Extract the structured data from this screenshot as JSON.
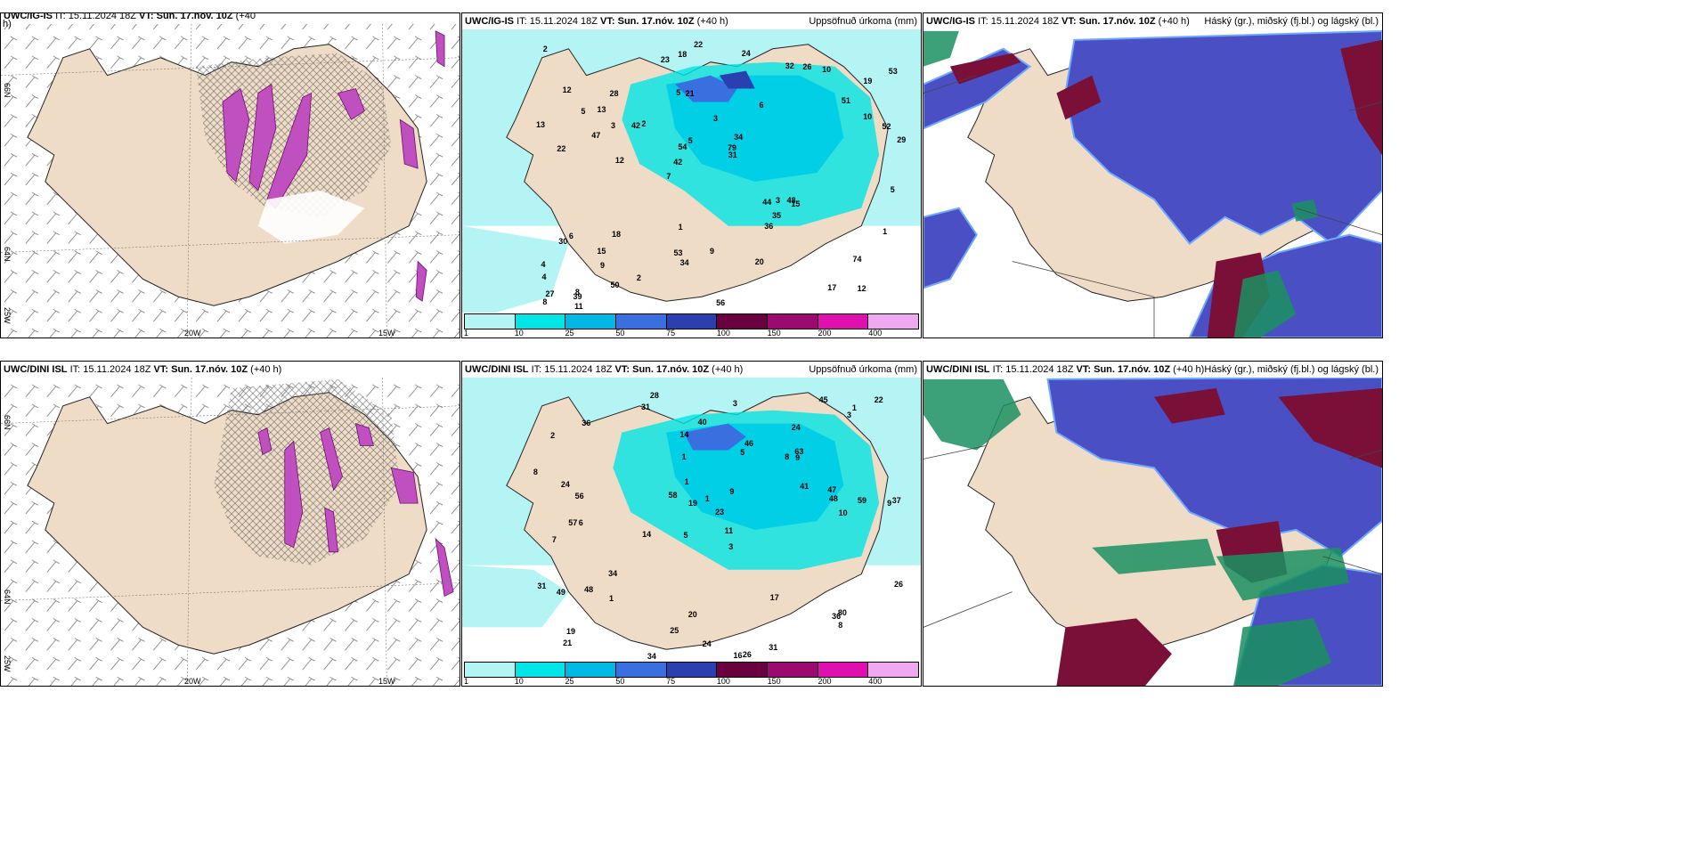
{
  "top": {
    "left": {
      "model": "UWC/IG-IS",
      "it": "IT: 15.11.2024 18Z",
      "vt": "VT: Sun. 17.nóv. 10Z",
      "lead": "(+40",
      "lead2": "h)",
      "axis": {
        "lat1": "66N",
        "lat2": "64N",
        "lat3": "25W",
        "lon1": "20W",
        "lon2": "15W"
      }
    },
    "middle": {
      "model": "UWC/IG-IS",
      "it": "IT: 15.11.2024 18Z",
      "vt": "VT: Sun. 17.nóv. 10Z",
      "lead": "(+40 h)",
      "field": "Uppsöfnuð úrkoma (mm)",
      "values": [
        "12",
        "22",
        "19",
        "7",
        "6",
        "8",
        "5",
        "3",
        "6",
        "2",
        "4",
        "9",
        "21",
        "34",
        "15",
        "12",
        "18",
        "29",
        "44",
        "10",
        "42",
        "53",
        "54",
        "28",
        "32",
        "18",
        "17",
        "74",
        "48",
        "56",
        "42",
        "47",
        "36",
        "50",
        "52",
        "79",
        "27",
        "34",
        "31",
        "30",
        "51",
        "53",
        "35",
        "20",
        "15",
        "11",
        "8",
        "9",
        "10",
        "22",
        "12",
        "13",
        "13",
        "26",
        "39",
        "24",
        "23",
        "5",
        "1",
        "1",
        "2",
        "3",
        "3",
        "4",
        "2",
        "5",
        "5"
      ]
    },
    "right": {
      "model": "UWC/IG-IS",
      "it": "IT: 15.11.2024 18Z",
      "vt": "VT: Sun. 17.nóv. 10Z",
      "lead": "(+40 h)",
      "field": "Háský (gr.), miðský (fj.bl.) og lágský (bl.)"
    }
  },
  "bottom": {
    "left": {
      "model": "UWC/DINI ISL",
      "it": "IT: 15.11.2024 18Z",
      "vt": "VT: Sun. 17.nóv. 10Z",
      "lead": "(+40 h)",
      "axis": {
        "lat1": "66N",
        "lat2": "64N",
        "lat3": "25W",
        "lon1": "20W",
        "lon2": "15W"
      }
    },
    "middle": {
      "model": "UWC/DINI ISL",
      "it": "IT: 15.11.2024 18Z",
      "vt": "VT: Sun. 17.nóv. 10Z",
      "lead": "(+40 h)",
      "field": "Uppsöfnuð úrkoma (mm)",
      "values": [
        "28",
        "24",
        "9",
        "5",
        "3",
        "6",
        "2",
        "8",
        "7",
        "5",
        "23",
        "21",
        "31",
        "14",
        "16",
        "26",
        "20",
        "45",
        "41",
        "34",
        "56",
        "57",
        "37",
        "59",
        "31",
        "24",
        "19",
        "48",
        "80",
        "49",
        "36",
        "46",
        "48",
        "58",
        "17",
        "26",
        "47",
        "25",
        "22",
        "40",
        "19",
        "34",
        "31",
        "36",
        "24",
        "9",
        "8",
        "63",
        "8",
        "11",
        "14",
        "10",
        "9",
        "3",
        "3",
        "1",
        "1",
        "1",
        "1",
        "1"
      ]
    },
    "right": {
      "model": "UWC/DINI ISL",
      "it": "IT: 15.11.2024 18Z",
      "vt": "VT: Sun. 17.nóv. 10Z",
      "lead": "(+40 h)",
      "field": "Háský (gr.), miðský (fj.bl.) og lágský (bl.)"
    }
  },
  "legend": {
    "ticks": [
      "1",
      "10",
      "25",
      "50",
      "75",
      "100",
      "150",
      "200",
      "400"
    ],
    "colors": [
      "#b3f5f5",
      "#00e5e5",
      "#00b8e6",
      "#3a6fe0",
      "#2a3fb0",
      "#6a0040",
      "#9a0a70",
      "#e010b0",
      "#f0a8f0"
    ]
  },
  "palette": {
    "land": "#efdcc6",
    "sea_precip": "#b5f4f4",
    "cloud_high": "#4b4fc4",
    "cloud_mid": "#7a1038",
    "cloud_low": "#1a9060",
    "precip_violet": "#c050c0"
  }
}
